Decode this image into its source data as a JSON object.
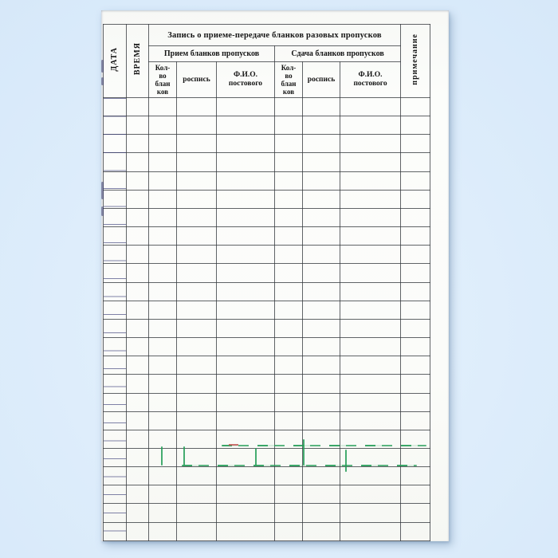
{
  "document": {
    "kind": "scanned-ledger-page",
    "title": "Запись о приеме-передаче бланков разовых пропусков",
    "sections": {
      "receive": "Прием бланков пропусков",
      "handover": "Сдача бланков пропусков"
    },
    "columns": {
      "date": "ДАТА",
      "time": "ВРЕМЯ",
      "qty": "Кол-\nво\nблан\nков",
      "sign": "роспись",
      "fio": "Ф.И.О.\nпостового",
      "note": "примечание"
    },
    "body_rows": 24,
    "body_columns": 9,
    "cells": "empty",
    "colors": {
      "background": "#d7e9fa",
      "paper": "#fbfcf9",
      "grid_ink": "#34383d",
      "margin_ink": "#3c3f7a",
      "text_ink": "#151515",
      "green_ink": "#269e58",
      "red_ink": "#c0504d"
    }
  }
}
